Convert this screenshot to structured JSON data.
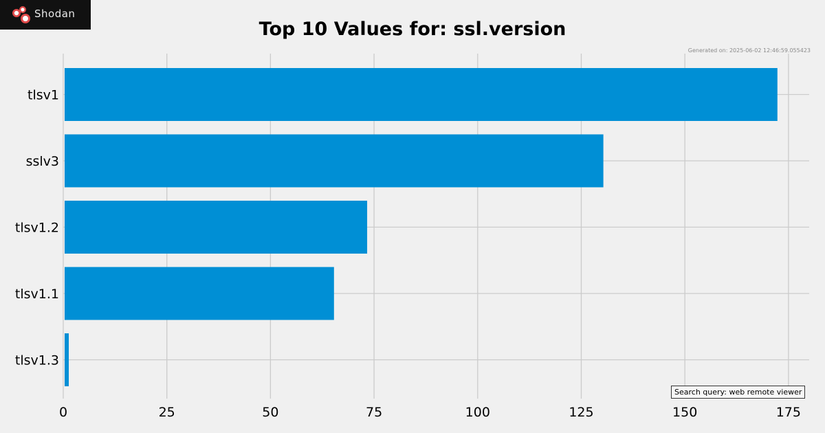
{
  "brand": {
    "name": "Shodan"
  },
  "chart_data": {
    "type": "bar",
    "orientation": "horizontal",
    "title": "Top 10 Values for: ssl.version",
    "generated": "Generated on: 2025-06-02 12:46:59.055423",
    "query_label": "Search query: web remote viewer",
    "categories": [
      "tlsv1",
      "sslv3",
      "tlsv1.2",
      "tlsv1.1",
      "tlsv1.3"
    ],
    "values": [
      172,
      130,
      73,
      65,
      1
    ],
    "xlim": [
      0,
      180
    ],
    "xticks": [
      0,
      25,
      50,
      75,
      100,
      125,
      150,
      175
    ],
    "xlabel": "",
    "ylabel": "",
    "grid": true,
    "bar_color": "#008fd5"
  }
}
